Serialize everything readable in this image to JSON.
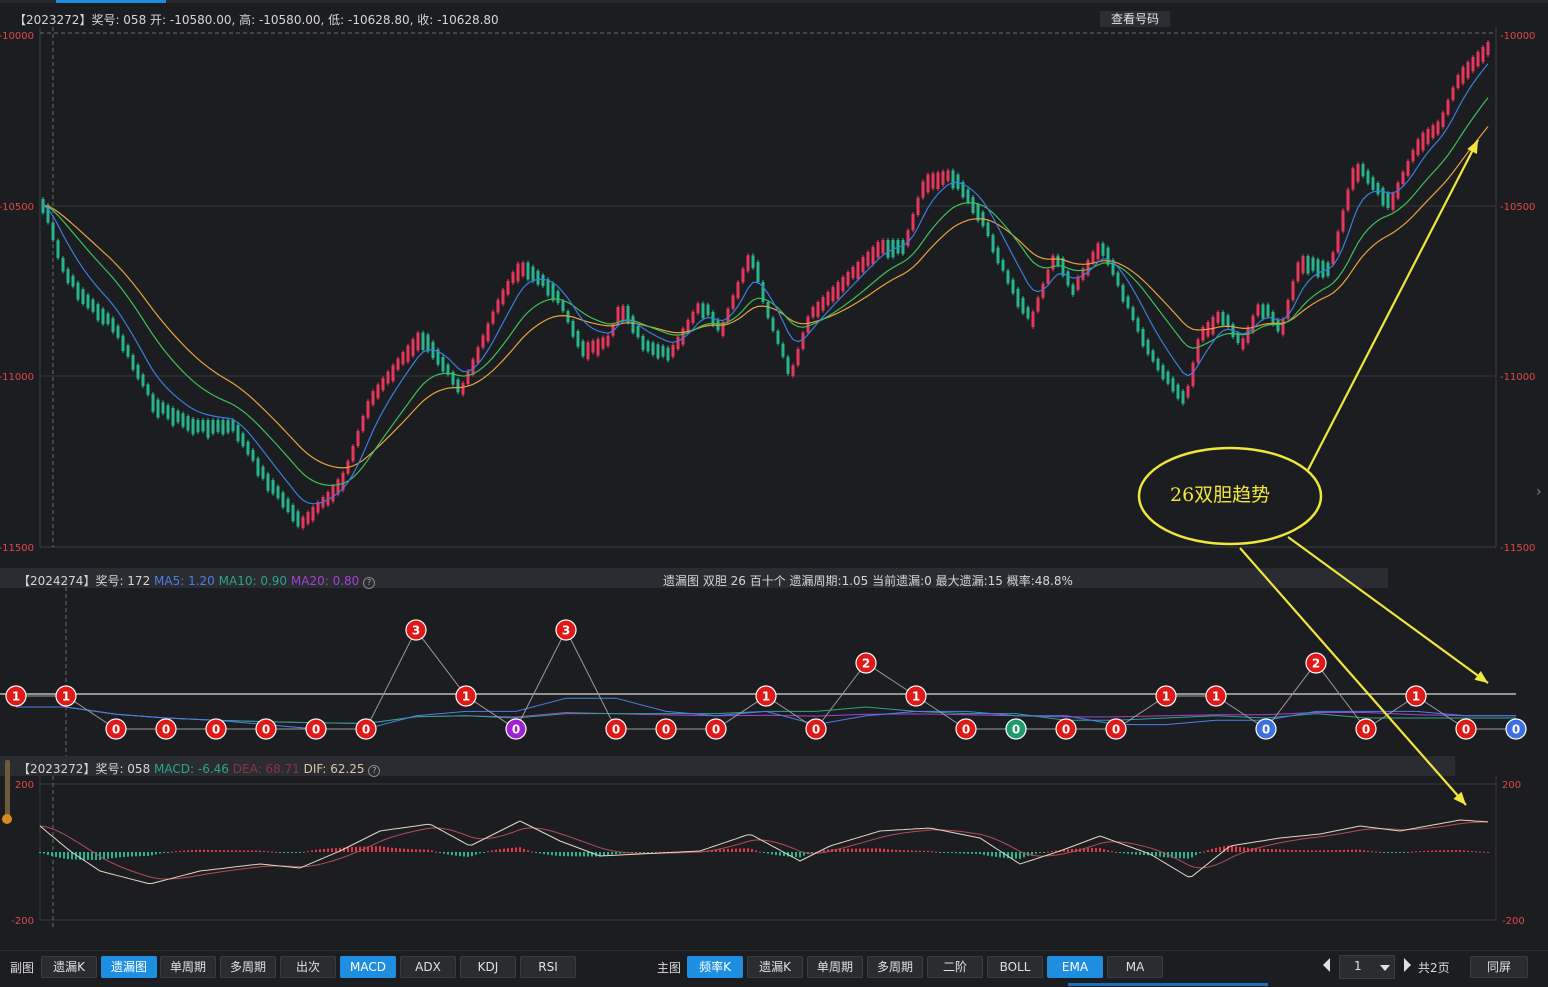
{
  "main_panel": {
    "header": "【2023272】奖号: 058  开: -10580.00, 高: -10580.00, 低: -10628.80, 收: -10628.80",
    "view_button": "查看号码",
    "y_ticks": [
      "-10000",
      "-10500",
      "-11000",
      "-11500"
    ],
    "colors": {
      "up": "#e8365d",
      "down": "#27b58e",
      "ema_fast": "#3a7de0",
      "ema_mid": "#3fbf5a",
      "ema_slow": "#e8a23c"
    }
  },
  "annotation": {
    "text": "26双胆趋势",
    "color": "#f0e63c"
  },
  "miss_panel": {
    "header_left_prefix": "【2024274】奖号: 172 ",
    "ma5": "MA5: 1.20",
    "ma10": "MA10: 0.90",
    "ma20": "MA20: 0.80",
    "header_center": "遗漏图   双胆   26   百十个    遗漏周期:1.05   当前遗漏:0    最大遗漏:15    概率:48.8%",
    "values": [
      1,
      1,
      0,
      0,
      0,
      0,
      0,
      0,
      3,
      1,
      0,
      3,
      0,
      0,
      0,
      1,
      0,
      2,
      1,
      0,
      0,
      0,
      0,
      1,
      1,
      0,
      2,
      0,
      1,
      0,
      0
    ],
    "point_colors": [
      "red",
      "red",
      "red",
      "red",
      "red",
      "red",
      "red",
      "red",
      "red",
      "red",
      "purple",
      "red",
      "red",
      "red",
      "red",
      "red",
      "red",
      "red",
      "red",
      "red",
      "green",
      "red",
      "red",
      "red",
      "red",
      "blue",
      "red",
      "red",
      "red",
      "red",
      "blue"
    ]
  },
  "macd_panel": {
    "header_prefix": "【2023272】奖号: 058 ",
    "macd": "MACD: -6.46",
    "dea": "DEA: 68.71",
    "dif": "DIF: 62.25",
    "y_ticks": [
      "200",
      "-200"
    ]
  },
  "toolbar": {
    "sub_label": "副图",
    "sub_buttons": [
      "遗漏K",
      "遗漏图",
      "单周期",
      "多周期",
      "出次",
      "MACD",
      "ADX",
      "KDJ",
      "RSI"
    ],
    "sub_active": [
      "遗漏图",
      "MACD"
    ],
    "main_label": "主图",
    "main_buttons": [
      "频率K",
      "遗漏K",
      "单周期",
      "多周期",
      "二阶",
      "BOLL",
      "EMA",
      "MA"
    ],
    "main_active": [
      "频率K",
      "EMA"
    ],
    "page_value": "1",
    "page_total": "共2页",
    "fullscreen": "同屏"
  },
  "chart_data": [
    {
      "type": "candlestick",
      "title": "",
      "ylim": [
        -11500,
        -10000
      ],
      "y_ticks": [
        -10000,
        -10500,
        -11000,
        -11500
      ],
      "grid": true,
      "series": [
        "candles",
        "EMA fast",
        "EMA mid",
        "EMA slow"
      ]
    },
    {
      "type": "line",
      "title": "",
      "y_values": [
        1,
        1,
        0,
        0,
        0,
        0,
        0,
        0,
        3,
        1,
        0,
        3,
        0,
        0,
        0,
        1,
        0,
        2,
        1,
        0,
        0,
        0,
        0,
        1,
        1,
        0,
        2,
        0,
        1,
        0,
        0
      ]
    },
    {
      "type": "bar",
      "title": "",
      "ylim": [
        -200,
        200
      ],
      "y_ticks": [
        200,
        -200
      ]
    }
  ]
}
